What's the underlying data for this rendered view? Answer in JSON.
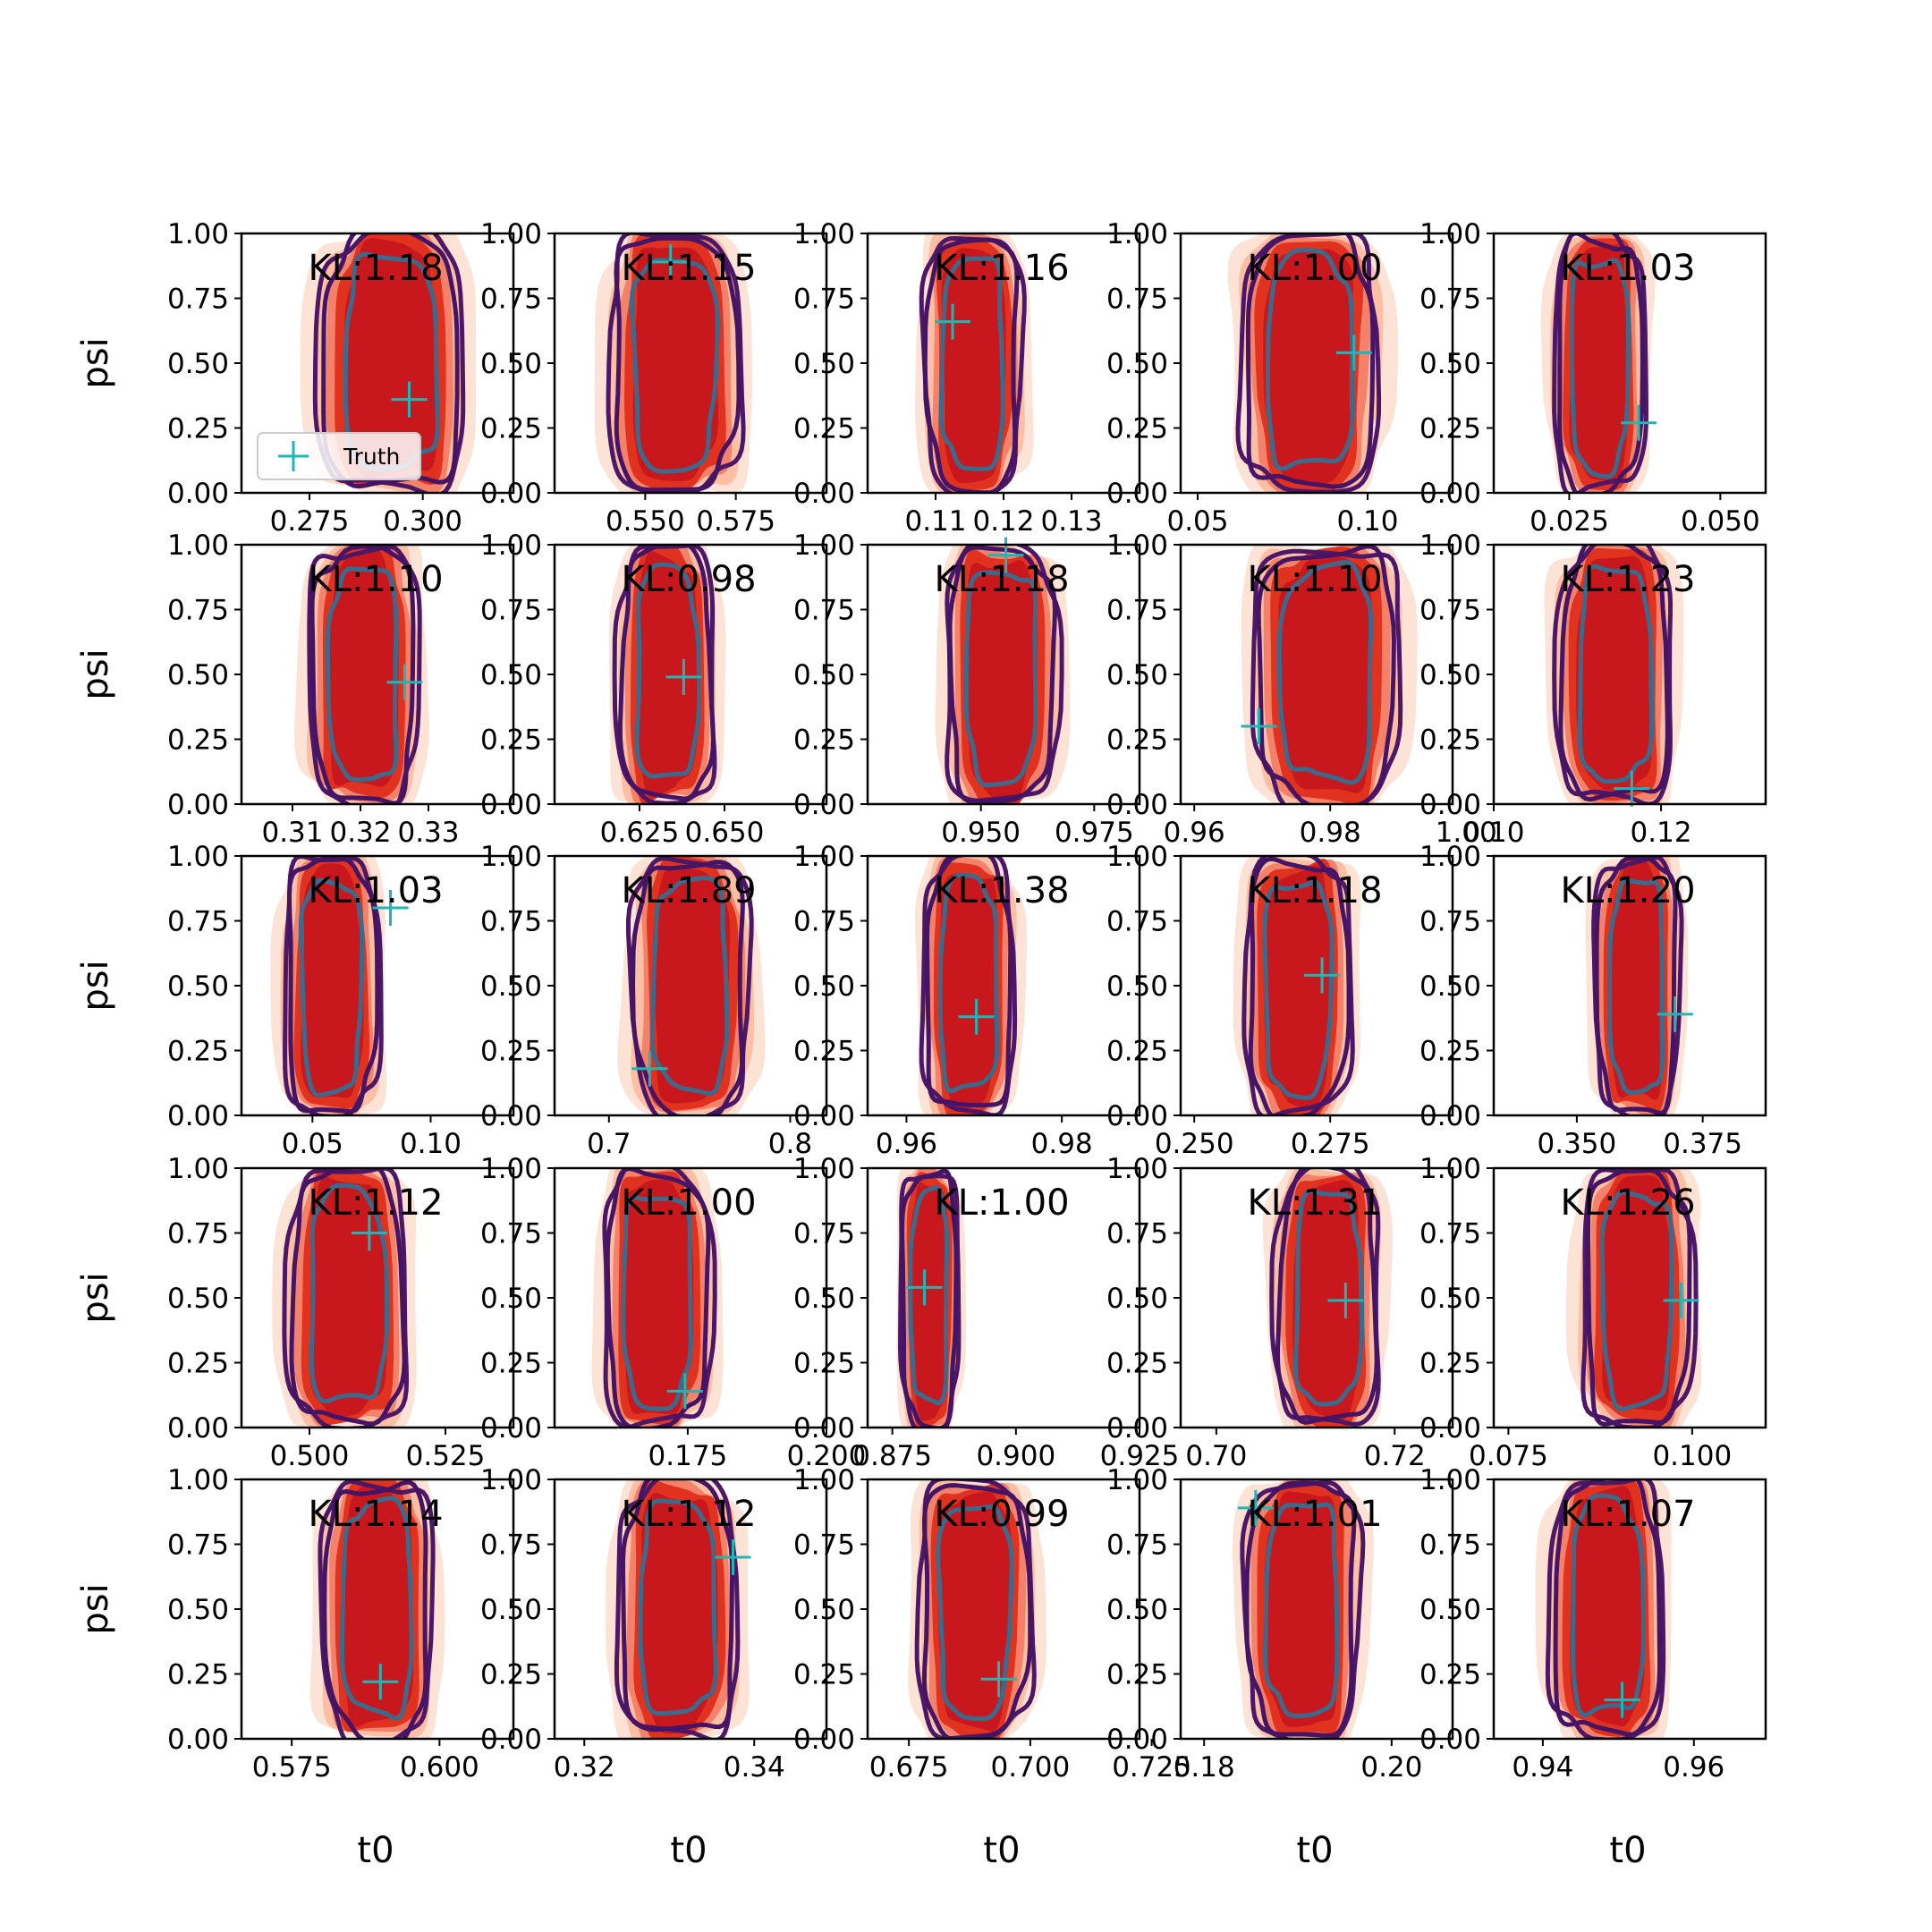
{
  "chart_data": {
    "type": "contour",
    "grid": "5x5",
    "xlabel": "t0",
    "ylabel": "psi",
    "ylim": [
      0,
      1
    ],
    "yticks": [
      "0.00",
      "0.25",
      "0.50",
      "0.75",
      "1.00"
    ],
    "legend": {
      "label": "Truth",
      "placement": "lower-left",
      "panel": 0
    },
    "colors": {
      "fill_levels": [
        "#fde2d6",
        "#fcbfa4",
        "#f4826a",
        "#e0321f",
        "#c9181d"
      ],
      "outer_contour": "#4b1766",
      "mid_contour": "#451465",
      "inner_contour": "#3a6a8c",
      "truth_marker": "#1fb6b6",
      "axes": "#000000"
    },
    "panels": [
      {
        "kl": "KL:1.18",
        "xlim": [
          0.26,
          0.32
        ],
        "xticks": [
          {
            "v": 0.275,
            "t": "0.275"
          },
          {
            "v": 0.3,
            "t": "0.300"
          }
        ],
        "center": 0.293,
        "width": 0.0125,
        "truth": [
          0.297,
          0.36
        ]
      },
      {
        "kl": "KL:1.15",
        "xlim": [
          0.525,
          0.6
        ],
        "xticks": [
          {
            "v": 0.55,
            "t": "0.550"
          },
          {
            "v": 0.575,
            "t": "0.575"
          }
        ],
        "center": 0.558,
        "width": 0.014,
        "truth": [
          0.557,
          0.89
        ]
      },
      {
        "kl": "KL:1.16",
        "xlim": [
          0.1,
          0.14
        ],
        "xticks": [
          {
            "v": 0.11,
            "t": "0.11"
          },
          {
            "v": 0.12,
            "t": "0.12"
          },
          {
            "v": 0.13,
            "t": "0.13"
          }
        ],
        "center": 0.1155,
        "width": 0.0055,
        "truth": [
          0.1125,
          0.66
        ]
      },
      {
        "kl": "KL:1.00",
        "xlim": [
          0.045,
          0.125
        ],
        "xticks": [
          {
            "v": 0.05,
            "t": "0.05"
          },
          {
            "v": 0.1,
            "t": "0.10"
          }
        ],
        "center": 0.083,
        "width": 0.0155,
        "truth": [
          0.096,
          0.54
        ]
      },
      {
        "kl": "KL:1.03",
        "xlim": [
          0.0125,
          0.0575
        ],
        "xticks": [
          {
            "v": 0.025,
            "t": "0.025"
          },
          {
            "v": 0.05,
            "t": "0.050"
          }
        ],
        "center": 0.03,
        "width": 0.0058,
        "truth": [
          0.0365,
          0.27
        ]
      },
      {
        "kl": "KL:1.10",
        "xlim": [
          0.3025,
          0.3425
        ],
        "xticks": [
          {
            "v": 0.31,
            "t": "0.31"
          },
          {
            "v": 0.32,
            "t": "0.32"
          },
          {
            "v": 0.33,
            "t": "0.33"
          }
        ],
        "center": 0.3205,
        "width": 0.0062,
        "truth": [
          0.3265,
          0.47
        ]
      },
      {
        "kl": "KL:0.98",
        "xlim": [
          0.6,
          0.68
        ],
        "xticks": [
          {
            "v": 0.625,
            "t": "0.625"
          },
          {
            "v": 0.65,
            "t": "0.650"
          }
        ],
        "center": 0.633,
        "width": 0.011,
        "truth": [
          0.638,
          0.49
        ]
      },
      {
        "kl": "KL:1.18",
        "xlim": [
          0.925,
          0.985
        ],
        "xticks": [
          {
            "v": 0.95,
            "t": "0.950"
          },
          {
            "v": 0.975,
            "t": "0.975"
          }
        ],
        "center": 0.9545,
        "width": 0.0095,
        "truth": [
          0.9555,
          0.96
        ]
      },
      {
        "kl": "KL:1.10",
        "xlim": [
          0.958,
          0.998
        ],
        "xticks": [
          {
            "v": 0.96,
            "t": "0.96"
          },
          {
            "v": 0.98,
            "t": "0.98"
          },
          {
            "v": 1.0,
            "t": "1.00"
          }
        ],
        "center": 0.9795,
        "width": 0.0083,
        "truth": [
          0.9695,
          0.3
        ]
      },
      {
        "kl": "KL:1.23",
        "xlim": [
          0.1,
          0.1325
        ],
        "xticks": [
          {
            "v": 0.1,
            "t": "0.10"
          },
          {
            "v": 0.12,
            "t": "0.12"
          }
        ],
        "center": 0.1145,
        "width": 0.0053,
        "truth": [
          0.1165,
          0.06
        ]
      },
      {
        "kl": "KL:1.03",
        "xlim": [
          0.02,
          0.135
        ],
        "xticks": [
          {
            "v": 0.05,
            "t": "0.05"
          },
          {
            "v": 0.1,
            "t": "0.10"
          }
        ],
        "center": 0.058,
        "width": 0.0155,
        "truth": [
          0.083,
          0.8
        ]
      },
      {
        "kl": "KL:1.89",
        "xlim": [
          0.67,
          0.82
        ],
        "xticks": [
          {
            "v": 0.7,
            "t": "0.7"
          },
          {
            "v": 0.8,
            "t": "0.8"
          }
        ],
        "center": 0.745,
        "width": 0.025,
        "truth": [
          0.7225,
          0.18
        ]
      },
      {
        "kl": "KL:1.38",
        "xlim": [
          0.955,
          0.99
        ],
        "xticks": [
          {
            "v": 0.96,
            "t": "0.96"
          },
          {
            "v": 0.98,
            "t": "0.98"
          }
        ],
        "center": 0.968,
        "width": 0.0045,
        "truth": [
          0.969,
          0.38
        ]
      },
      {
        "kl": "KL:1.18",
        "xlim": [
          0.2475,
          0.2975
        ],
        "xticks": [
          {
            "v": 0.25,
            "t": "0.250"
          },
          {
            "v": 0.275,
            "t": "0.275"
          }
        ],
        "center": 0.269,
        "width": 0.0075,
        "truth": [
          0.2735,
          0.54
        ]
      },
      {
        "kl": "KL:1.20",
        "xlim": [
          0.3335,
          0.3875
        ],
        "xticks": [
          {
            "v": 0.35,
            "t": "0.350"
          },
          {
            "v": 0.375,
            "t": "0.375"
          }
        ],
        "center": 0.362,
        "width": 0.0065,
        "truth": [
          0.3695,
          0.39
        ]
      },
      {
        "kl": "KL:1.12",
        "xlim": [
          0.4875,
          0.5375
        ],
        "xticks": [
          {
            "v": 0.5,
            "t": "0.500"
          },
          {
            "v": 0.525,
            "t": "0.525"
          }
        ],
        "center": 0.507,
        "width": 0.0085,
        "truth": [
          0.511,
          0.75
        ]
      },
      {
        "kl": "KL:1.00",
        "xlim": [
          0.151,
          0.2
        ],
        "xticks": [
          {
            "v": 0.175,
            "t": "0.175"
          },
          {
            "v": 0.2,
            "t": "0.200"
          }
        ],
        "center": 0.1695,
        "width": 0.0075,
        "truth": [
          0.1745,
          0.14
        ]
      },
      {
        "kl": "KL:1.00",
        "xlim": [
          0.87,
          0.925
        ],
        "xticks": [
          {
            "v": 0.875,
            "t": "0.875"
          },
          {
            "v": 0.9,
            "t": "0.900"
          },
          {
            "v": 0.925,
            "t": "0.925"
          }
        ],
        "center": 0.8825,
        "width": 0.0045,
        "truth": [
          0.8815,
          0.54
        ]
      },
      {
        "kl": "KL:1.31",
        "xlim": [
          0.696,
          0.7265
        ],
        "xticks": [
          {
            "v": 0.7,
            "t": "0.70"
          },
          {
            "v": 0.72,
            "t": "0.72"
          }
        ],
        "center": 0.7125,
        "width": 0.0045,
        "truth": [
          0.7145,
          0.49
        ]
      },
      {
        "kl": "KL:1.26",
        "xlim": [
          0.073,
          0.11
        ],
        "xticks": [
          {
            "v": 0.075,
            "t": "0.075"
          },
          {
            "v": 0.1,
            "t": "0.100"
          }
        ],
        "center": 0.0925,
        "width": 0.0058,
        "truth": [
          0.0985,
          0.49
        ]
      },
      {
        "kl": "KL:1.14",
        "xlim": [
          0.5665,
          0.6125
        ],
        "xticks": [
          {
            "v": 0.575,
            "t": "0.575"
          },
          {
            "v": 0.6,
            "t": "0.600"
          }
        ],
        "center": 0.5895,
        "width": 0.0072,
        "truth": [
          0.59,
          0.22
        ]
      },
      {
        "kl": "KL:1.12",
        "xlim": [
          0.3165,
          0.3485
        ],
        "xticks": [
          {
            "v": 0.32,
            "t": "0.32"
          },
          {
            "v": 0.34,
            "t": "0.34"
          }
        ],
        "center": 0.331,
        "width": 0.0054,
        "truth": [
          0.3375,
          0.7
        ]
      },
      {
        "kl": "KL:0.99",
        "xlim": [
          0.6665,
          0.7225
        ],
        "xticks": [
          {
            "v": 0.675,
            "t": "0.675"
          },
          {
            "v": 0.7,
            "t": "0.700"
          },
          {
            "v": 0.725,
            "t": "0.725"
          }
        ],
        "center": 0.6885,
        "width": 0.009,
        "truth": [
          0.6935,
          0.23
        ]
      },
      {
        "kl": "KL:1.01",
        "xlim": [
          0.1775,
          0.2065
        ],
        "xticks": [
          {
            "v": 0.18,
            "t": "0.18"
          },
          {
            "v": 0.2,
            "t": "0.20"
          }
        ],
        "center": 0.1905,
        "width": 0.0047,
        "truth": [
          0.1855,
          0.89
        ]
      },
      {
        "kl": "KL:1.07",
        "xlim": [
          0.9335,
          0.9695
        ],
        "xticks": [
          {
            "v": 0.94,
            "t": "0.94"
          },
          {
            "v": 0.96,
            "t": "0.96"
          }
        ],
        "center": 0.9485,
        "width": 0.0058,
        "truth": [
          0.9505,
          0.15
        ]
      }
    ]
  }
}
